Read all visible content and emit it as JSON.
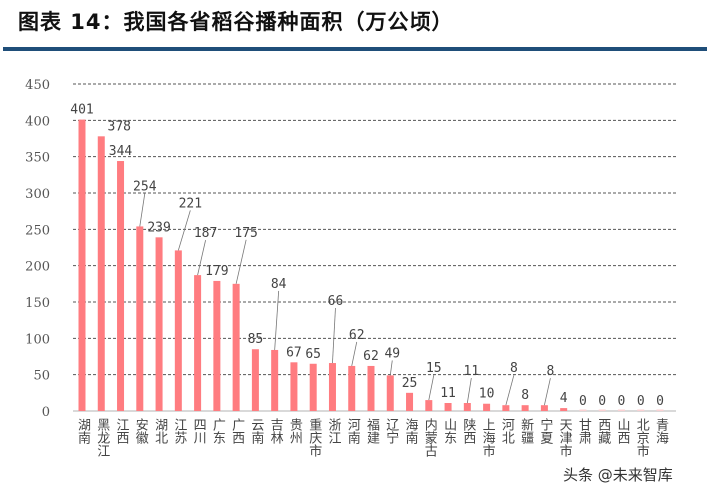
{
  "title": "图表 14：我国各省稻谷播种面积（万公顷）",
  "watermark": "头条 @未来智库",
  "chart_data": {
    "type": "bar",
    "title": "图表 14：我国各省稻谷播种面积（万公顷）",
    "xlabel": "",
    "ylabel": "",
    "ylim": [
      0,
      450
    ],
    "yticks": [
      0,
      50,
      100,
      150,
      200,
      250,
      300,
      350,
      400,
      450
    ],
    "grid": true,
    "bar_color": "#ff7c80",
    "categories": [
      "湖南",
      "黑龙江",
      "江西",
      "安徽",
      "湖北",
      "江苏",
      "四川",
      "广东",
      "广西",
      "云南",
      "吉林",
      "贵州",
      "重庆市",
      "浙江",
      "河南",
      "福建",
      "辽宁",
      "海南",
      "内蒙古",
      "山东",
      "陕西",
      "上海市",
      "河北",
      "新疆",
      "宁夏",
      "天津市",
      "甘肃",
      "西藏",
      "山西",
      "北京市",
      "青海"
    ],
    "values": [
      401,
      378,
      344,
      254,
      239,
      221,
      187,
      179,
      175,
      85,
      84,
      67,
      65,
      66,
      62,
      62,
      49,
      25,
      15,
      11,
      11,
      10,
      8,
      8,
      8,
      4,
      0,
      0,
      0,
      0,
      0
    ]
  }
}
